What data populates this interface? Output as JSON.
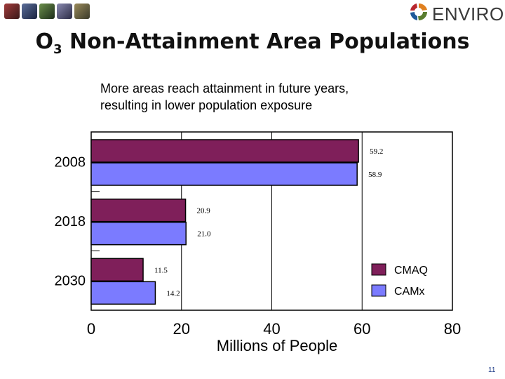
{
  "header": {
    "thumbnails": [
      {
        "icon": "globe-thumb-icon",
        "color": "#6b2c2c"
      },
      {
        "icon": "satellite-thumb-icon",
        "color": "#2b3a5c"
      },
      {
        "icon": "plant-thumb-icon",
        "color": "#2d4a2a"
      },
      {
        "icon": "car-thumb-icon",
        "color": "#3b3b55"
      },
      {
        "icon": "map-thumb-icon",
        "color": "#4a4a3a"
      }
    ],
    "logo": {
      "text": "ENVIRON",
      "icon": "environ-logo-icon"
    }
  },
  "slide": {
    "title_main": "O",
    "title_sub": "3",
    "title_rest": " Non-Attainment Area Populations",
    "subtitle_line1": "More areas reach attainment in future years,",
    "subtitle_line2": "resulting in lower population exposure",
    "page_number": "11"
  },
  "chart_data": {
    "type": "bar",
    "orientation": "horizontal",
    "categories": [
      "2008",
      "2018",
      "2030"
    ],
    "series": [
      {
        "name": "CMAQ",
        "color": "#7f1f5a",
        "values": [
          59.2,
          20.9,
          11.5
        ],
        "labels": [
          "59.2",
          "20.9",
          "11.5"
        ]
      },
      {
        "name": "CAMx",
        "color": "#7b7bff",
        "values": [
          58.9,
          21.0,
          14.2
        ],
        "labels": [
          "58.9",
          "21.0",
          "14.2"
        ]
      }
    ],
    "xlabel": "Millions of People",
    "xlim": [
      0,
      80
    ],
    "xticks": [
      "0",
      "20",
      "40",
      "60",
      "80"
    ],
    "legend_position": "bottom-right",
    "grid": "vertical"
  }
}
